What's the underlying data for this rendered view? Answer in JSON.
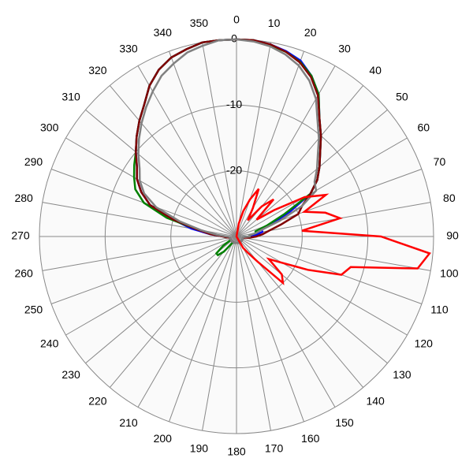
{
  "chart_data": {
    "type": "polar",
    "rlim": [
      -30,
      0
    ],
    "rticks": [
      -20,
      -10,
      0
    ],
    "angle_ticks": [
      0,
      10,
      20,
      30,
      40,
      50,
      60,
      70,
      80,
      90,
      100,
      110,
      120,
      130,
      140,
      150,
      160,
      170,
      180,
      190,
      200,
      210,
      220,
      230,
      240,
      250,
      260,
      270,
      280,
      290,
      300,
      310,
      320,
      330,
      340,
      350
    ],
    "angles": [
      0,
      5,
      10,
      15,
      20,
      25,
      30,
      35,
      40,
      45,
      50,
      55,
      60,
      65,
      70,
      75,
      80,
      85,
      90,
      95,
      100,
      105,
      110,
      115,
      120,
      125,
      130,
      135,
      140,
      145,
      150,
      155,
      160,
      165,
      170,
      175,
      180,
      185,
      190,
      195,
      200,
      205,
      210,
      215,
      220,
      225,
      230,
      235,
      240,
      245,
      250,
      255,
      260,
      265,
      270,
      275,
      280,
      285,
      290,
      295,
      300,
      305,
      310,
      315,
      320,
      325,
      330,
      335,
      340,
      345,
      350,
      355
    ],
    "series": [
      {
        "color": "#0000ff",
        "values": [
          0,
          0,
          -0.3,
          -0.8,
          -1.5,
          -3,
          -5,
          -8,
          -10,
          -12,
          -13.5,
          -15,
          -17,
          -21,
          -24,
          -26,
          -26,
          -27,
          -28,
          -29,
          -29,
          -29,
          -29,
          -29,
          -29,
          -29,
          -29,
          -29,
          -29,
          -29,
          -29,
          -29,
          -29,
          -29,
          -29,
          -29,
          -29,
          -29,
          -29,
          -29,
          -29,
          -29,
          -29,
          -29,
          -29,
          -29,
          -29,
          -29,
          -29,
          -29,
          -29,
          -29,
          -29,
          -28.5,
          -28,
          -26,
          -23,
          -20,
          -16,
          -14,
          -12.5,
          -11.5,
          -10,
          -8.5,
          -7,
          -5.5,
          -3.5,
          -2,
          -1,
          -0.5,
          0,
          0
        ]
      },
      {
        "color": "#008000",
        "values": [
          0,
          0,
          -0.4,
          -0.9,
          -1.7,
          -3,
          -5,
          -8,
          -10,
          -12,
          -13.5,
          -15,
          -17,
          -22,
          -25,
          -27,
          -27,
          -28,
          -28,
          -29,
          -29,
          -29,
          -29,
          -29,
          -29,
          -29,
          -29,
          -29,
          -29,
          -29,
          -29,
          -29,
          -29,
          -29,
          -29,
          -29,
          -29,
          -29,
          -29,
          -29,
          -29,
          -29,
          -29,
          -28.5,
          -27,
          -26,
          -26,
          -27.5,
          -29,
          -29,
          -29,
          -29,
          -29,
          -28.5,
          -28,
          -26.5,
          -24,
          -19,
          -15,
          -13,
          -12,
          -11,
          -10,
          -8.5,
          -7,
          -5.5,
          -3.5,
          -2,
          -1,
          -0.5,
          0,
          0
        ]
      },
      {
        "color": "#800000",
        "values": [
          0,
          0,
          -0.3,
          -0.9,
          -1.8,
          -3.2,
          -5.2,
          -8,
          -10,
          -12,
          -13.5,
          -15,
          -17,
          -19,
          -20,
          -23,
          -25,
          -26,
          -27,
          -28,
          -29,
          -29,
          -29,
          -29,
          -29,
          -29,
          -29,
          -29,
          -29,
          -29,
          -29,
          -29,
          -29,
          -29,
          -29,
          -29,
          -29,
          -29,
          -29,
          -29,
          -29,
          -29,
          -29,
          -29,
          -29,
          -29,
          -29,
          -29,
          -29,
          -29,
          -29,
          -29,
          -29,
          -28.5,
          -28,
          -26,
          -24,
          -20,
          -16,
          -14,
          -12.5,
          -11.5,
          -10,
          -8.5,
          -7,
          -5.5,
          -3.5,
          -2,
          -1,
          -0.5,
          0,
          0
        ]
      },
      {
        "color": "#808080",
        "values": [
          0,
          -0.2,
          -0.6,
          -1.3,
          -2.3,
          -3.8,
          -5.8,
          -8.5,
          -10.5,
          -12.5,
          -14,
          -15.5,
          -16,
          -19,
          -23,
          -26,
          -27,
          -28,
          -28,
          -29,
          -29,
          -29,
          -29,
          -29,
          -29,
          -29,
          -29,
          -29,
          -29,
          -29,
          -29,
          -29,
          -29,
          -29,
          -29,
          -29,
          -29,
          -29,
          -29,
          -29,
          -29,
          -29,
          -29,
          -29,
          -29,
          -29,
          -29,
          -29,
          -29,
          -29,
          -29,
          -29,
          -29,
          -29,
          -28.5,
          -27,
          -24.5,
          -21,
          -17,
          -14.5,
          -13,
          -12,
          -10.5,
          -9,
          -7.5,
          -6,
          -4.5,
          -3,
          -2,
          -1,
          -0.5,
          0
        ]
      },
      {
        "color": "#ff0000",
        "values": [
          -30,
          -30,
          -28,
          -26,
          -24,
          -22,
          -25,
          -27,
          -24,
          -22,
          -26,
          -23,
          -18,
          -15,
          -19,
          -16,
          -14,
          -20,
          -8,
          -0.5,
          -2,
          -12,
          -13,
          -18,
          -22,
          -24,
          -21,
          -20,
          -25,
          -27,
          -28,
          -30,
          -30,
          -30,
          -30,
          -30,
          -30,
          -30,
          -30,
          -30,
          -30,
          -30,
          -30,
          -30,
          -30,
          -30,
          -30,
          -30,
          -30,
          -30,
          -30,
          -30,
          -30,
          -30,
          -30,
          -30,
          -30,
          -30,
          -30,
          -30,
          -30,
          -30,
          -30,
          -30,
          -30,
          -30,
          -30,
          -30,
          -30,
          -30,
          -30,
          -30
        ]
      }
    ]
  }
}
